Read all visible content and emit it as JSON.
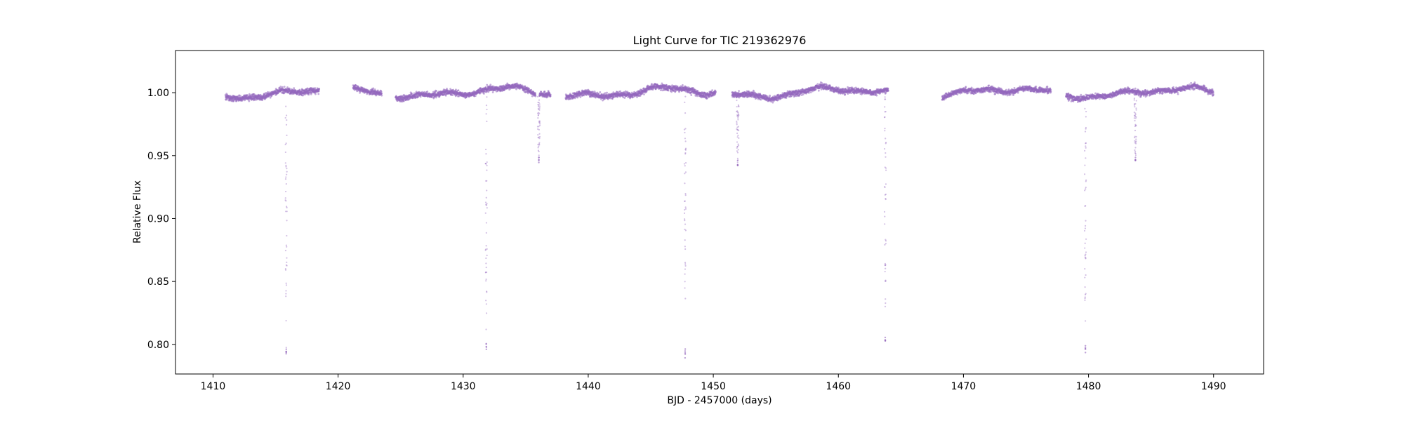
{
  "chart_data": {
    "type": "scatter",
    "title": "Light Curve for TIC 219362976",
    "xlabel": "BJD - 2457000 (days)",
    "ylabel": "Relative Flux",
    "xlim": [
      1407,
      1494
    ],
    "ylim": [
      0.7765,
      1.0335
    ],
    "xticks": [
      "1410",
      "1420",
      "1430",
      "1440",
      "1450",
      "1460",
      "1470",
      "1480",
      "1490"
    ],
    "yticks": [
      "0.80",
      "0.85",
      "0.90",
      "0.95",
      "1.00"
    ],
    "grid": false,
    "point_color": "#9467bd",
    "segments": [
      [
        1411.0,
        1418.5
      ],
      [
        1421.2,
        1423.5
      ],
      [
        1424.6,
        1435.8
      ],
      [
        1436.1,
        1437.0
      ],
      [
        1438.2,
        1450.2
      ],
      [
        1451.5,
        1464.0
      ],
      [
        1468.3,
        1477.0
      ],
      [
        1478.2,
        1490.0
      ]
    ],
    "dips": [
      {
        "center": 1415.85,
        "depth": 0.79
      },
      {
        "center": 1431.85,
        "depth": 0.793
      },
      {
        "center": 1436.05,
        "depth": 0.942
      },
      {
        "center": 1447.75,
        "depth": 0.789
      },
      {
        "center": 1451.95,
        "depth": 0.942
      },
      {
        "center": 1463.75,
        "depth": 0.798
      },
      {
        "center": 1479.75,
        "depth": 0.793
      },
      {
        "center": 1483.75,
        "depth": 0.942
      }
    ]
  }
}
